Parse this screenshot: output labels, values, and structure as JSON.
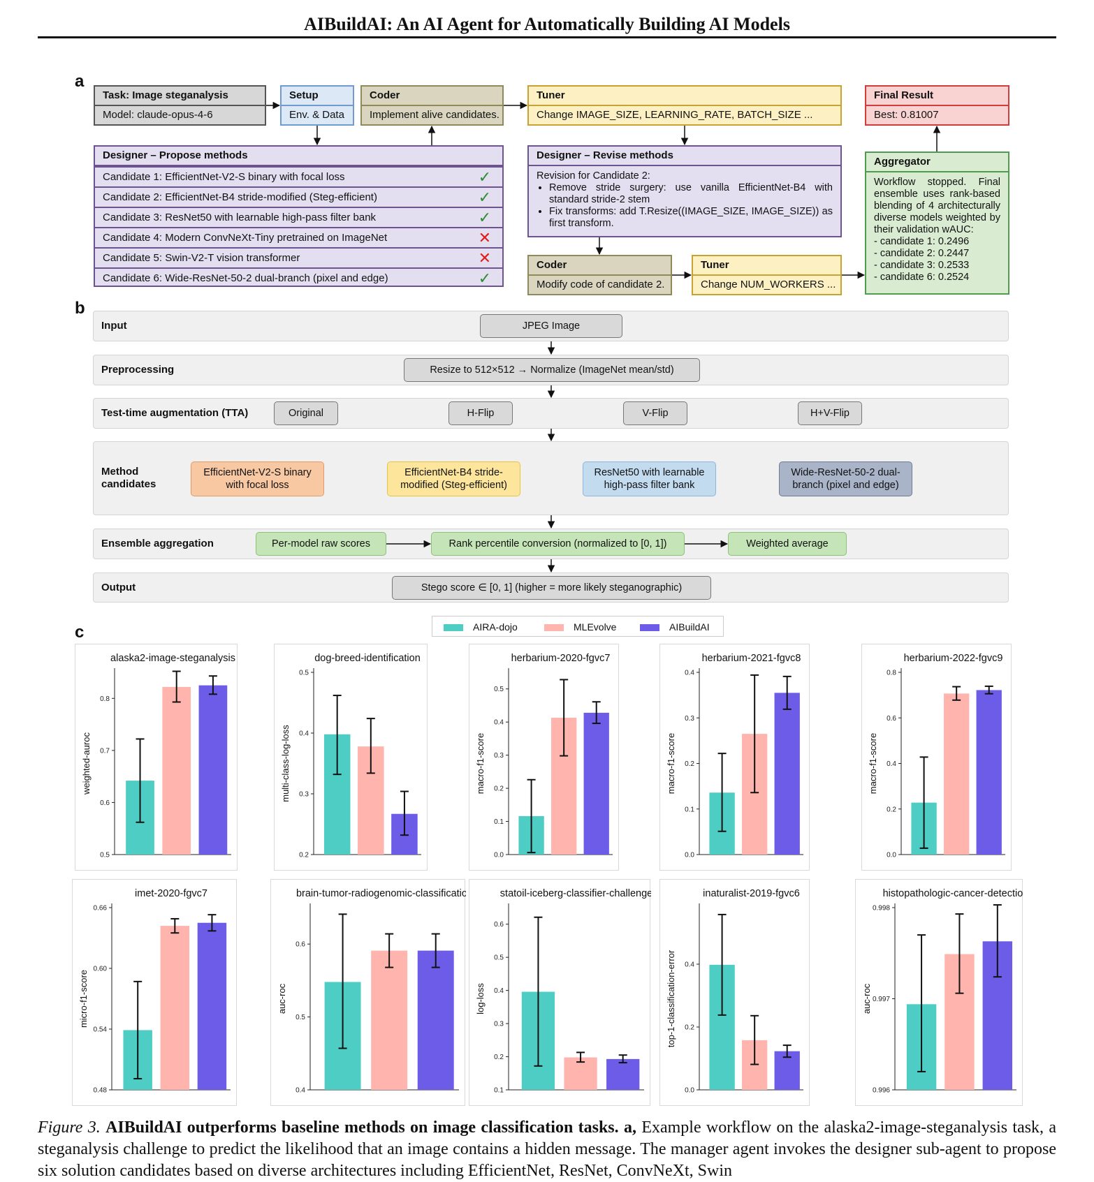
{
  "page": {
    "title": "AIBuildAI: An AI Agent for Automatically Building AI Models"
  },
  "panel_a": {
    "letter": "a",
    "task": {
      "header": "Task: Image steganalysis",
      "body": "Model: claude-opus-4-6"
    },
    "setup": {
      "header": "Setup",
      "body": "Env. & Data"
    },
    "coder1": {
      "header": "Coder",
      "body": "Implement alive candidates."
    },
    "tuner1": {
      "header": "Tuner",
      "body": "Change IMAGE_SIZE, LEARNING_RATE, BATCH_SIZE ..."
    },
    "final": {
      "header": "Final Result",
      "body": "Best: 0.81007"
    },
    "designer_propose": {
      "header": "Designer – Propose methods",
      "candidates": [
        {
          "label": "Candidate 1: EfficientNet-V2-S binary with focal loss",
          "status": "✓"
        },
        {
          "label": "Candidate 2: EfficientNet-B4 stride-modified (Steg-efficient)",
          "status": "✓"
        },
        {
          "label": "Candidate 3: ResNet50 with learnable high-pass filter bank",
          "status": "✓"
        },
        {
          "label": "Candidate 4: Modern ConvNeXt-Tiny pretrained on ImageNet",
          "status": "✕"
        },
        {
          "label": "Candidate 5: Swin-V2-T vision transformer",
          "status": "✕"
        },
        {
          "label": "Candidate 6: Wide-ResNet-50-2 dual-branch (pixel and edge)",
          "status": "✓"
        }
      ]
    },
    "designer_revise": {
      "header": "Designer – Revise methods",
      "intro": "Revision for Candidate 2:",
      "bullets": [
        "Remove stride surgery: use vanilla EfficientNet-B4 with standard stride-2 stem",
        "Fix transforms: add T.Resize((IMAGE_SIZE, IMAGE_SIZE)) as first transform."
      ]
    },
    "coder2": {
      "header": "Coder",
      "body": "Modify code of candidate 2."
    },
    "tuner2": {
      "header": "Tuner",
      "body": "Change NUM_WORKERS ..."
    },
    "aggregator": {
      "header": "Aggregator",
      "body": "Workflow stopped. Final ensemble uses rank-based blending of 4 architecturally diverse models weighted by their validation wAUC:",
      "weights": [
        "- candidate 1: 0.2496",
        "- candidate 2: 0.2447",
        "- candidate 3: 0.2533",
        "- candidate 6: 0.2524"
      ]
    }
  },
  "panel_b": {
    "letter": "b",
    "input": {
      "label": "Input",
      "value": "JPEG Image"
    },
    "preprocessing": {
      "label": "Preprocessing",
      "value": "Resize to 512×512 → Normalize (ImageNet mean/std)"
    },
    "tta": {
      "label": "Test-time augmentation (TTA)",
      "options": [
        "Original",
        "H-Flip",
        "V-Flip",
        "H+V-Flip"
      ]
    },
    "methods": {
      "label": "Method candidates",
      "items": [
        "EfficientNet-V2-S binary with focal loss",
        "EfficientNet-B4 stride-modified (Steg-efficient)",
        "ResNet50 with learnable high-pass filter bank",
        "Wide-ResNet-50-2 dual-branch (pixel and edge)"
      ]
    },
    "ensemble": {
      "label": "Ensemble aggregation",
      "steps": [
        "Per-model raw scores",
        "Rank percentile conversion (normalized to [0, 1])",
        "Weighted average"
      ]
    },
    "output": {
      "label": "Output",
      "value": "Stego score ∈ [0, 1] (higher = more likely steganographic)"
    }
  },
  "panel_c": {
    "letter": "c",
    "legend": [
      {
        "name": "AIRA-dojo",
        "color": "#4ecdc4"
      },
      {
        "name": "MLEvolve",
        "color": "#ffb5ad"
      },
      {
        "name": "AIBuildAI",
        "color": "#6c5ce7"
      }
    ]
  },
  "chart_data": [
    {
      "type": "bar",
      "title": "alaska2-image-steganalysis",
      "ylabel": "weighted-auroc",
      "ylim": [
        0.5,
        0.85
      ],
      "yticks": [
        0.5,
        0.6,
        0.7,
        0.8
      ],
      "series": [
        {
          "name": "AIRA-dojo",
          "value": 0.642,
          "err": [
            0.562,
            0.722
          ]
        },
        {
          "name": "MLEvolve",
          "value": 0.822,
          "err": [
            0.793,
            0.852
          ]
        },
        {
          "name": "AIBuildAI",
          "value": 0.825,
          "err": [
            0.808,
            0.843
          ]
        }
      ]
    },
    {
      "type": "bar",
      "title": "dog-breed-identification",
      "ylabel": "multi-class-log-loss",
      "ylim": [
        0.2,
        0.5
      ],
      "yticks": [
        0.2,
        0.3,
        0.4,
        0.5
      ],
      "series": [
        {
          "name": "AIRA-dojo",
          "value": 0.398,
          "err": [
            0.332,
            0.462
          ]
        },
        {
          "name": "MLEvolve",
          "value": 0.378,
          "err": [
            0.334,
            0.424
          ]
        },
        {
          "name": "AIBuildAI",
          "value": 0.267,
          "err": [
            0.232,
            0.304
          ]
        }
      ]
    },
    {
      "type": "bar",
      "title": "herbarium-2020-fgvc7",
      "ylabel": "macro-f1-score",
      "ylim": [
        0.0,
        0.55
      ],
      "yticks": [
        0.0,
        0.1,
        0.2,
        0.3,
        0.4,
        0.5
      ],
      "series": [
        {
          "name": "AIRA-dojo",
          "value": 0.116,
          "err": [
            0.006,
            0.226
          ]
        },
        {
          "name": "MLEvolve",
          "value": 0.413,
          "err": [
            0.298,
            0.528
          ]
        },
        {
          "name": "AIBuildAI",
          "value": 0.428,
          "err": [
            0.396,
            0.461
          ]
        }
      ]
    },
    {
      "type": "bar",
      "title": "herbarium-2021-fgvc8",
      "ylabel": "macro-f1-score",
      "ylim": [
        0.0,
        0.4
      ],
      "yticks": [
        0.0,
        0.1,
        0.2,
        0.3,
        0.4
      ],
      "series": [
        {
          "name": "AIRA-dojo",
          "value": 0.136,
          "err": [
            0.051,
            0.222
          ]
        },
        {
          "name": "MLEvolve",
          "value": 0.265,
          "err": [
            0.136,
            0.394
          ]
        },
        {
          "name": "AIBuildAI",
          "value": 0.355,
          "err": [
            0.319,
            0.391
          ]
        }
      ]
    },
    {
      "type": "bar",
      "title": "herbarium-2022-fgvc9",
      "ylabel": "macro-f1-score",
      "ylim": [
        0.0,
        0.8
      ],
      "yticks": [
        0.0,
        0.2,
        0.4,
        0.6,
        0.8
      ],
      "series": [
        {
          "name": "AIRA-dojo",
          "value": 0.228,
          "err": [
            0.028,
            0.428
          ]
        },
        {
          "name": "MLEvolve",
          "value": 0.707,
          "err": [
            0.678,
            0.737
          ]
        },
        {
          "name": "AIBuildAI",
          "value": 0.722,
          "err": [
            0.706,
            0.739
          ]
        }
      ]
    },
    {
      "type": "bar",
      "title": "imet-2020-fgvc7",
      "ylabel": "micro-f1-score",
      "ylim": [
        0.48,
        0.66
      ],
      "yticks": [
        0.48,
        0.54,
        0.6,
        0.66
      ],
      "series": [
        {
          "name": "AIRA-dojo",
          "value": 0.539,
          "err": [
            0.491,
            0.587
          ]
        },
        {
          "name": "MLEvolve",
          "value": 0.642,
          "err": [
            0.635,
            0.649
          ]
        },
        {
          "name": "AIBuildAI",
          "value": 0.645,
          "err": [
            0.637,
            0.653
          ]
        }
      ]
    },
    {
      "type": "bar",
      "title": "brain-tumor-radiogenomic-classification",
      "ylabel": "auc-roc",
      "ylim": [
        0.4,
        0.65
      ],
      "yticks": [
        0.4,
        0.5,
        0.6
      ],
      "series": [
        {
          "name": "AIRA-dojo",
          "value": 0.548,
          "err": [
            0.457,
            0.641
          ]
        },
        {
          "name": "MLEvolve",
          "value": 0.591,
          "err": [
            0.568,
            0.614
          ]
        },
        {
          "name": "AIBuildAI",
          "value": 0.591,
          "err": [
            0.568,
            0.614
          ]
        }
      ]
    },
    {
      "type": "bar",
      "title": "statoil-iceberg-classifier-challenge",
      "ylabel": "log-loss",
      "ylim": [
        0.1,
        0.65
      ],
      "yticks": [
        0.1,
        0.2,
        0.3,
        0.4,
        0.5,
        0.6
      ],
      "series": [
        {
          "name": "AIRA-dojo",
          "value": 0.396,
          "err": [
            0.172,
            0.621
          ]
        },
        {
          "name": "MLEvolve",
          "value": 0.198,
          "err": [
            0.184,
            0.213
          ]
        },
        {
          "name": "AIBuildAI",
          "value": 0.193,
          "err": [
            0.182,
            0.205
          ]
        }
      ]
    },
    {
      "type": "bar",
      "title": "inaturalist-2019-fgvc6",
      "ylabel": "top-1-classification-error",
      "ylim": [
        0.0,
        0.58
      ],
      "yticks": [
        0.0,
        0.2,
        0.4
      ],
      "series": [
        {
          "name": "AIRA-dojo",
          "value": 0.398,
          "err": [
            0.238,
            0.558
          ]
        },
        {
          "name": "MLEvolve",
          "value": 0.158,
          "err": [
            0.081,
            0.236
          ]
        },
        {
          "name": "AIBuildAI",
          "value": 0.123,
          "err": [
            0.104,
            0.142
          ]
        }
      ]
    },
    {
      "type": "bar",
      "title": "histopathologic-cancer-detection",
      "ylabel": "auc-roc",
      "ylim": [
        0.996,
        0.998
      ],
      "yticks": [
        0.996,
        0.997,
        0.998
      ],
      "series": [
        {
          "name": "AIRA-dojo",
          "value": 0.99694,
          "err": [
            0.9962,
            0.9977
          ]
        },
        {
          "name": "MLEvolve",
          "value": 0.99749,
          "err": [
            0.99706,
            0.99793
          ]
        },
        {
          "name": "AIBuildAI",
          "value": 0.99763,
          "err": [
            0.99724,
            0.99803
          ]
        }
      ]
    }
  ],
  "caption": {
    "figure_label": "Figure 3.",
    "bold_title": "AIBuildAI outperforms baseline methods on image classification tasks.",
    "part_a": "a,",
    "text1": "Example workflow on the alaska2-image-steganalysis task, a steganalysis challenge to predict the likelihood that an image contains a hidden message. The manager agent invokes",
    "text2": "the designer sub-agent to propose six solution candidates based on diverse architectures including EfficientNet, ResNet, ConvNeXt, Swin"
  }
}
